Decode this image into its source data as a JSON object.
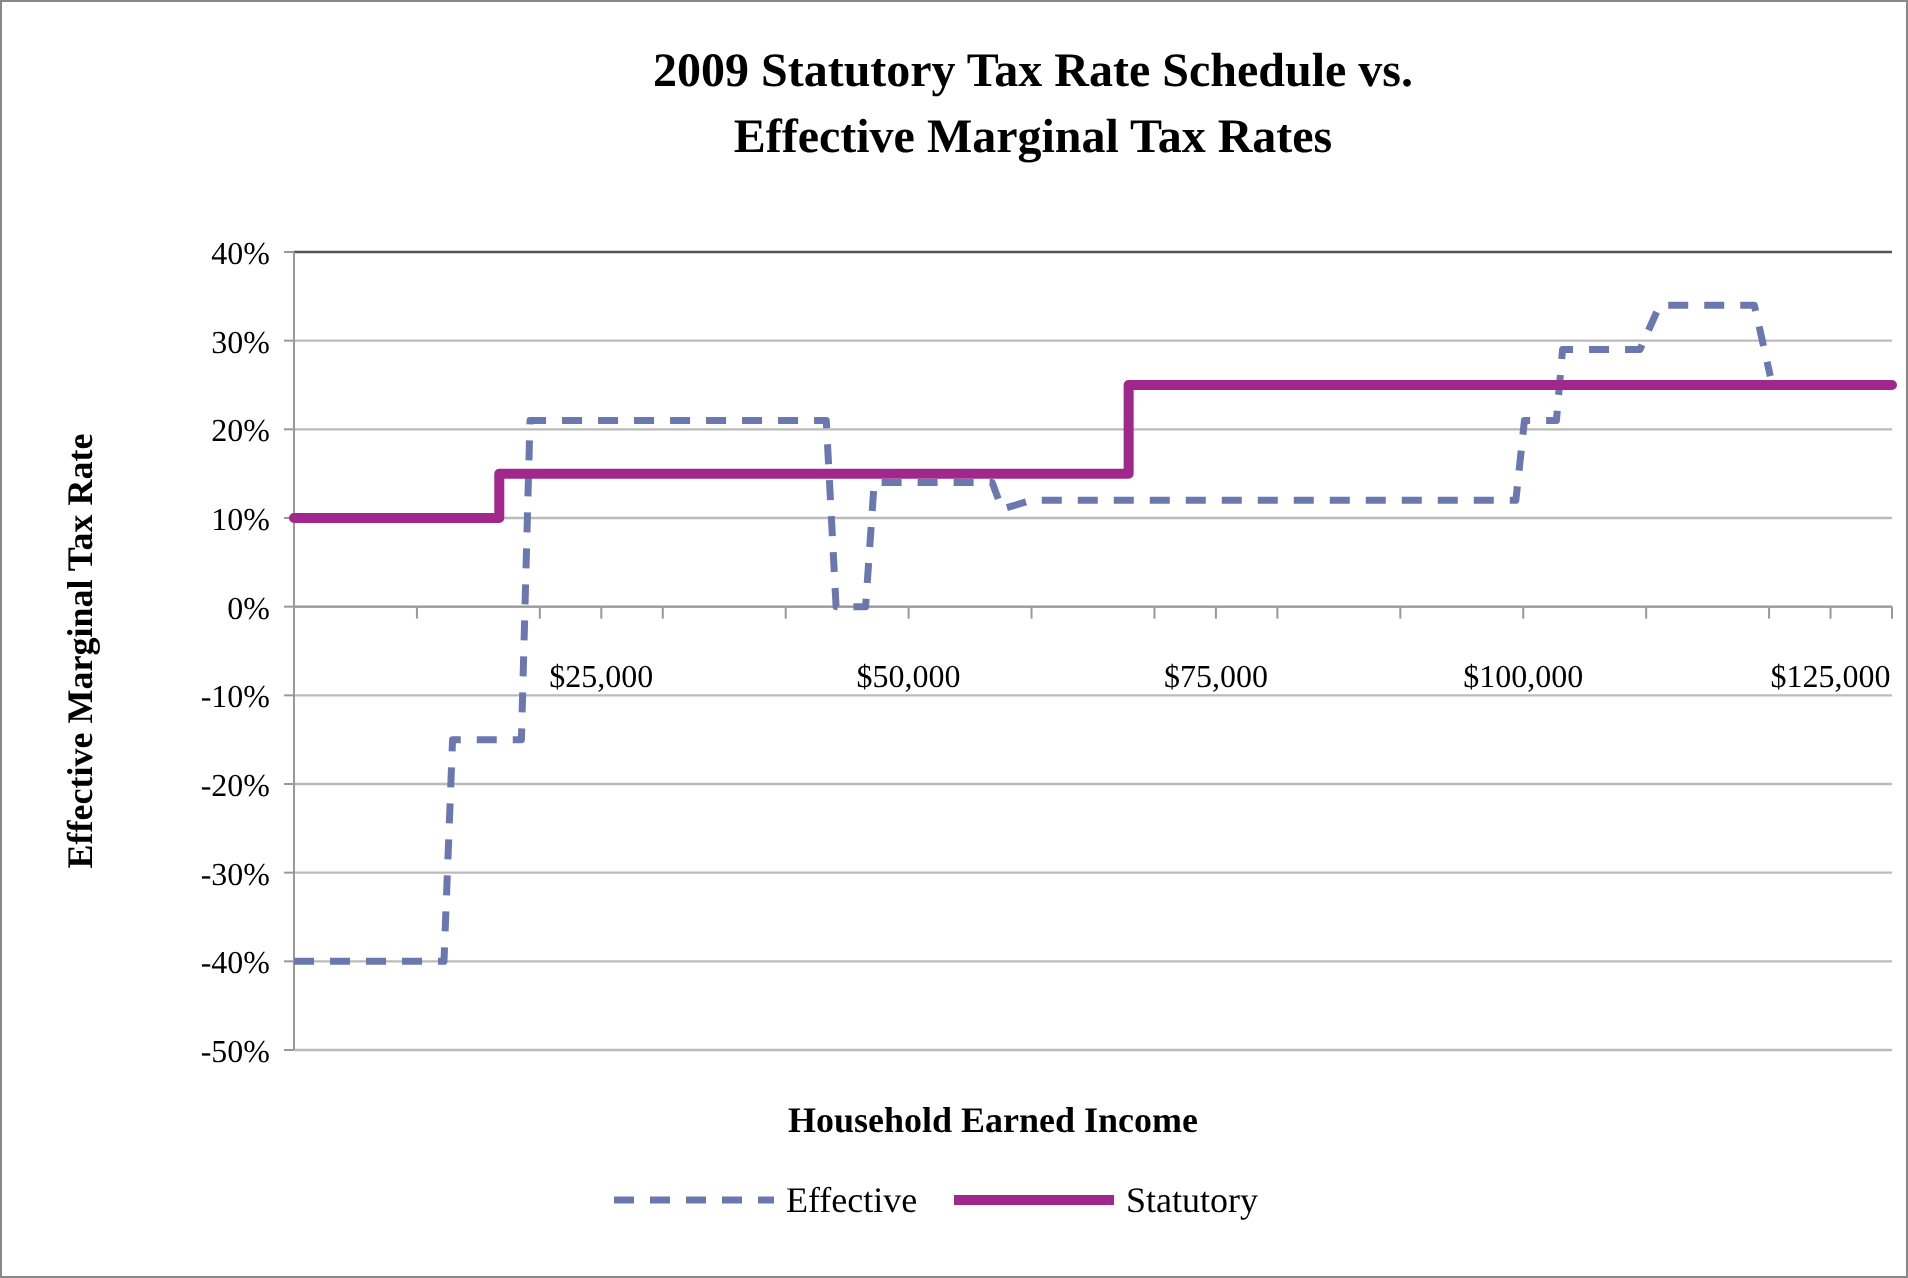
{
  "chart_data": {
    "type": "line",
    "title": "2009 Statutory Tax Rate Schedule vs.\nEffective Marginal Tax Rates",
    "xlabel": "Household Earned Income",
    "ylabel": "Effective Marginal Tax Rate",
    "xlim": [
      0,
      130000
    ],
    "xticks": [
      {
        "value": 10000,
        "label": null
      },
      {
        "value": 20000,
        "label": null
      },
      {
        "value": 25000,
        "label": "$25,000"
      },
      {
        "value": 30000,
        "label": null
      },
      {
        "value": 40000,
        "label": null
      },
      {
        "value": 50000,
        "label": "$50,000"
      },
      {
        "value": 60000,
        "label": null
      },
      {
        "value": 70000,
        "label": null
      },
      {
        "value": 75000,
        "label": "$75,000"
      },
      {
        "value": 80000,
        "label": null
      },
      {
        "value": 90000,
        "label": null
      },
      {
        "value": 100000,
        "label": "$100,000"
      },
      {
        "value": 110000,
        "label": null
      },
      {
        "value": 120000,
        "label": null
      },
      {
        "value": 125000,
        "label": "$125,000"
      },
      {
        "value": 130000,
        "label": null
      }
    ],
    "ylim": [
      -50,
      40
    ],
    "yticks": [
      {
        "value": -50,
        "label": "-50%"
      },
      {
        "value": -40,
        "label": "-40%"
      },
      {
        "value": -30,
        "label": "-30%"
      },
      {
        "value": -20,
        "label": "-20%"
      },
      {
        "value": -10,
        "label": "-10%"
      },
      {
        "value": 0,
        "label": "0%"
      },
      {
        "value": 10,
        "label": "10%"
      },
      {
        "value": 20,
        "label": "20%"
      },
      {
        "value": 30,
        "label": "30%"
      },
      {
        "value": 40,
        "label": "40%"
      }
    ],
    "grid": "y",
    "legend": "bottom",
    "marker": "none",
    "series": [
      {
        "name": "Effective",
        "color": "#6b78b0",
        "line_style": "dashed",
        "x": [
          0,
          12200,
          12900,
          18500,
          19200,
          43300,
          44100,
          46500,
          47200,
          56800,
          57600,
          60000,
          99400,
          100100,
          102700,
          103200,
          109500,
          111100,
          118800,
          120100
        ],
        "values": [
          -40,
          -40,
          -15,
          -15,
          21,
          21,
          0,
          0,
          14,
          14,
          11,
          12,
          12,
          21,
          21,
          29,
          29,
          34,
          34,
          26
        ]
      },
      {
        "name": "Statutory",
        "type": "step",
        "color": "#a0288c",
        "line_style": "solid",
        "x": [
          0,
          16700,
          67900,
          130000
        ],
        "values": [
          10,
          15,
          25,
          25
        ]
      }
    ]
  }
}
